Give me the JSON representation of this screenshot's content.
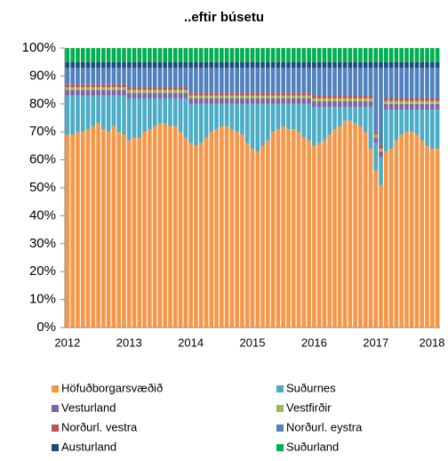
{
  "chart_data": {
    "type": "stacked_bar",
    "title": "..eftir búsetu",
    "categories": [
      "2012",
      null,
      null,
      null,
      null,
      null,
      null,
      null,
      null,
      null,
      null,
      null,
      "2013",
      null,
      null,
      null,
      null,
      null,
      null,
      null,
      null,
      null,
      null,
      null,
      "2014",
      null,
      null,
      null,
      null,
      null,
      null,
      null,
      null,
      null,
      null,
      null,
      "2015",
      null,
      null,
      null,
      null,
      null,
      null,
      null,
      null,
      null,
      null,
      null,
      "2016",
      null,
      null,
      null,
      null,
      null,
      null,
      null,
      null,
      null,
      null,
      null,
      "2017",
      null,
      null,
      null,
      null,
      null,
      null,
      null,
      null,
      null,
      null,
      null,
      "2018"
    ],
    "ylim": [
      0,
      100
    ],
    "yticks": [
      {
        "value": 0,
        "label": "0%"
      },
      {
        "value": 10,
        "label": "10%"
      },
      {
        "value": 20,
        "label": "20%"
      },
      {
        "value": 30,
        "label": "30%"
      },
      {
        "value": 40,
        "label": "40%"
      },
      {
        "value": 50,
        "label": "50%"
      },
      {
        "value": 60,
        "label": "60%"
      },
      {
        "value": 70,
        "label": "70%"
      },
      {
        "value": 80,
        "label": "80%"
      },
      {
        "value": 90,
        "label": "90%"
      },
      {
        "value": 100,
        "label": "100%"
      }
    ],
    "series": [
      {
        "name": "Höfuðborgarsvæðið",
        "color": "#F79646",
        "values": [
          69,
          69,
          70,
          70,
          71,
          72,
          73,
          71,
          70,
          72,
          70,
          69,
          67,
          68,
          68,
          70,
          71,
          72,
          73,
          73,
          72,
          72,
          70,
          68,
          66,
          65,
          66,
          68,
          70,
          71,
          72,
          72,
          71,
          70,
          69,
          66,
          64,
          63,
          65,
          67,
          70,
          71,
          72,
          71,
          71,
          70,
          68,
          67,
          65,
          66,
          67,
          69,
          71,
          72,
          74,
          74,
          73,
          72,
          70,
          64,
          56,
          51,
          63,
          64,
          67,
          69,
          70,
          70,
          69,
          67,
          65,
          64,
          64
        ]
      },
      {
        "name": "Suðurnes",
        "color": "#4BACC6",
        "values": [
          14,
          14,
          13,
          13,
          12,
          11,
          10,
          12,
          13,
          11,
          13,
          14,
          15,
          14,
          14,
          12,
          11,
          10,
          9,
          9,
          10,
          10,
          12,
          14,
          14,
          15,
          14,
          12,
          10,
          9,
          8,
          8,
          9,
          10,
          11,
          14,
          16,
          17,
          15,
          13,
          10,
          9,
          8,
          9,
          9,
          10,
          12,
          13,
          14,
          13,
          12,
          10,
          8,
          7,
          5,
          5,
          6,
          7,
          9,
          15,
          10,
          10,
          15,
          14,
          11,
          9,
          8,
          8,
          9,
          11,
          13,
          14,
          14
        ]
      },
      {
        "name": "Vesturland",
        "color": "#8064A2",
        "values": [
          2,
          2,
          2,
          2,
          2,
          2,
          2,
          2,
          2,
          2,
          2,
          2,
          2,
          2,
          2,
          2,
          2,
          2,
          2,
          2,
          2,
          2,
          2,
          2,
          2,
          2,
          2,
          2,
          2,
          2,
          2,
          2,
          2,
          2,
          2,
          2,
          2,
          2,
          2,
          2,
          2,
          2,
          2,
          2,
          2,
          2,
          2,
          2,
          2,
          2,
          2,
          2,
          2,
          2,
          2,
          2,
          2,
          2,
          2,
          2,
          2,
          2,
          2,
          2,
          2,
          2,
          2,
          2,
          2,
          2,
          2,
          2,
          2
        ]
      },
      {
        "name": "Vestfirðir",
        "color": "#9BBB59",
        "values": [
          1,
          1,
          1,
          1,
          1,
          1,
          1,
          1,
          1,
          1,
          1,
          1,
          1,
          1,
          1,
          1,
          1,
          1,
          1,
          1,
          1,
          1,
          1,
          1,
          1,
          1,
          1,
          1,
          1,
          1,
          1,
          1,
          1,
          1,
          1,
          1,
          1,
          1,
          1,
          1,
          1,
          1,
          1,
          1,
          1,
          1,
          1,
          1,
          1,
          1,
          1,
          1,
          1,
          1,
          1,
          1,
          1,
          1,
          1,
          1,
          1,
          1,
          1,
          1,
          1,
          1,
          1,
          1,
          1,
          1,
          1,
          1,
          1
        ]
      },
      {
        "name": "Norðurl. vestra",
        "color": "#C0504D",
        "values": [
          1,
          1,
          1,
          1,
          1,
          1,
          1,
          1,
          1,
          1,
          1,
          1,
          1,
          1,
          1,
          1,
          1,
          1,
          1,
          1,
          1,
          1,
          1,
          1,
          1,
          1,
          1,
          1,
          1,
          1,
          1,
          1,
          1,
          1,
          1,
          1,
          1,
          1,
          1,
          1,
          1,
          1,
          1,
          1,
          1,
          1,
          1,
          1,
          1,
          1,
          1,
          1,
          1,
          1,
          1,
          1,
          1,
          1,
          1,
          1,
          1,
          1,
          1,
          1,
          1,
          1,
          1,
          1,
          1,
          1,
          1,
          1,
          1
        ]
      },
      {
        "name": "Norðurl. eystra",
        "color": "#4F81BD",
        "values": [
          6,
          6,
          6,
          6,
          6,
          6,
          6,
          6,
          6,
          6,
          6,
          6,
          7,
          7,
          7,
          7,
          7,
          7,
          7,
          7,
          7,
          7,
          7,
          7,
          9,
          9,
          9,
          9,
          9,
          9,
          9,
          9,
          9,
          9,
          9,
          9,
          9,
          9,
          9,
          9,
          9,
          9,
          9,
          9,
          9,
          9,
          9,
          9,
          10,
          10,
          10,
          10,
          10,
          10,
          10,
          10,
          10,
          10,
          10,
          10,
          23,
          28,
          11,
          11,
          11,
          11,
          11,
          11,
          11,
          11,
          11,
          11,
          11
        ]
      },
      {
        "name": "Austurland",
        "color": "#1F497D",
        "values": [
          2,
          2,
          2,
          2,
          2,
          2,
          2,
          2,
          2,
          2,
          2,
          2,
          2,
          2,
          2,
          2,
          2,
          2,
          2,
          2,
          2,
          2,
          2,
          2,
          2,
          2,
          2,
          2,
          2,
          2,
          2,
          2,
          2,
          2,
          2,
          2,
          2,
          2,
          2,
          2,
          2,
          2,
          2,
          2,
          2,
          2,
          2,
          2,
          2,
          2,
          2,
          2,
          2,
          2,
          2,
          2,
          2,
          2,
          2,
          2,
          2,
          2,
          2,
          2,
          2,
          2,
          2,
          2,
          2,
          2,
          2,
          2,
          2
        ]
      },
      {
        "name": "Suðurland",
        "color": "#00B050",
        "values": [
          5,
          5,
          5,
          5,
          5,
          5,
          5,
          5,
          5,
          5,
          5,
          5,
          5,
          5,
          5,
          5,
          5,
          5,
          5,
          5,
          5,
          5,
          5,
          5,
          5,
          5,
          5,
          5,
          5,
          5,
          5,
          5,
          5,
          5,
          5,
          5,
          5,
          5,
          5,
          5,
          5,
          5,
          5,
          5,
          5,
          5,
          5,
          5,
          5,
          5,
          5,
          5,
          5,
          5,
          5,
          5,
          5,
          5,
          5,
          5,
          5,
          5,
          5,
          5,
          5,
          5,
          5,
          5,
          5,
          5,
          5,
          5,
          5
        ]
      }
    ]
  }
}
